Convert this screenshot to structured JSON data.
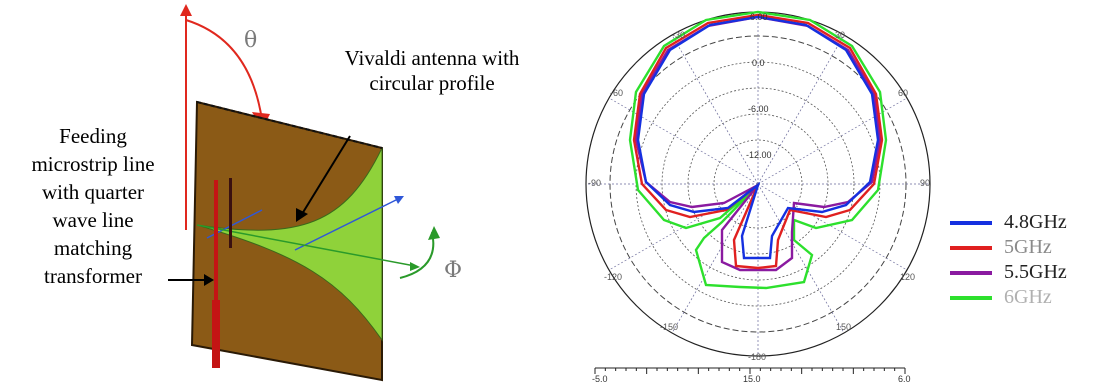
{
  "antenna_diagram": {
    "theta_symbol": "θ",
    "phi_symbol": "Φ",
    "vivaldi_label": [
      "Vivaldi antenna with",
      "circular profile"
    ],
    "feed_label": [
      "Feeding",
      "microstrip line",
      "with quarter",
      "wave line",
      "matching",
      "transformer"
    ],
    "colors": {
      "substrate": "#8B5A16",
      "slot": "#8FD23A",
      "arrow_red": "#E0281E",
      "arrow_green": "#2A9A2A",
      "axis_blue": "#2F57D8",
      "feed_red": "#C41414"
    }
  },
  "polar_plot": {
    "top_value": "6.00",
    "ring_values": [
      "0.0",
      "-6.00",
      "-12.00"
    ],
    "angle_labels": [
      "-30",
      "30",
      "-60",
      "60",
      "-90",
      "90",
      "-120",
      "120",
      "-150",
      "150",
      "-180"
    ],
    "scale_labels": [
      "-5.0",
      "15.0",
      "6.0"
    ]
  },
  "legend": [
    {
      "label": "4.8GHz",
      "color": "#1530E0",
      "text_color": "#222222"
    },
    {
      "label": "5GHz",
      "color": "#E02020",
      "text_color": "#8a8a8a"
    },
    {
      "label": "5.5GHz",
      "color": "#8A1AA0",
      "text_color": "#222222"
    },
    {
      "label": "6GHz",
      "color": "#2DE02D",
      "text_color": "#b0b0b0"
    }
  ]
}
